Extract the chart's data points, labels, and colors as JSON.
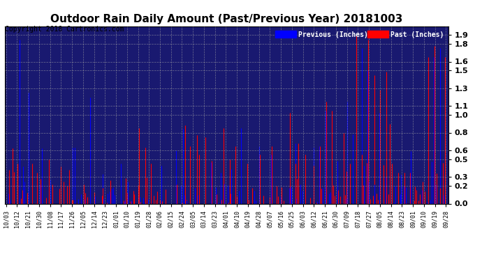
{
  "title": "Outdoor Rain Daily Amount (Past/Previous Year) 20181003",
  "copyright": "Copyright 2018 Cartronics.com",
  "legend_previous": "Previous (Inches)",
  "legend_past": "Past (Inches)",
  "color_previous": "#0000ff",
  "color_past": "#ff0000",
  "yticks": [
    0.0,
    0.2,
    0.3,
    0.5,
    0.6,
    0.8,
    1.0,
    1.1,
    1.3,
    1.5,
    1.6,
    1.8,
    1.9
  ],
  "ylim": [
    0.0,
    2.0
  ],
  "x_labels": [
    "10/03",
    "10/12",
    "10/21",
    "10/30",
    "11/08",
    "11/17",
    "11/26",
    "12/05",
    "12/14",
    "12/23",
    "01/01",
    "01/10",
    "01/19",
    "01/28",
    "02/06",
    "02/15",
    "02/24",
    "03/05",
    "03/14",
    "03/23",
    "04/01",
    "04/10",
    "04/19",
    "04/28",
    "05/07",
    "05/16",
    "05/25",
    "06/03",
    "06/12",
    "06/21",
    "06/30",
    "07/09",
    "07/18",
    "07/27",
    "08/05",
    "08/14",
    "08/23",
    "09/01",
    "09/10",
    "09/19",
    "09/28"
  ],
  "fig_bg": "#ffffff",
  "plot_bg": "#191970",
  "grid_color": "#888888",
  "title_fontsize": 11,
  "copyright_fontsize": 7,
  "ytick_fontsize": 8,
  "xtick_fontsize": 6,
  "n_days": 366
}
